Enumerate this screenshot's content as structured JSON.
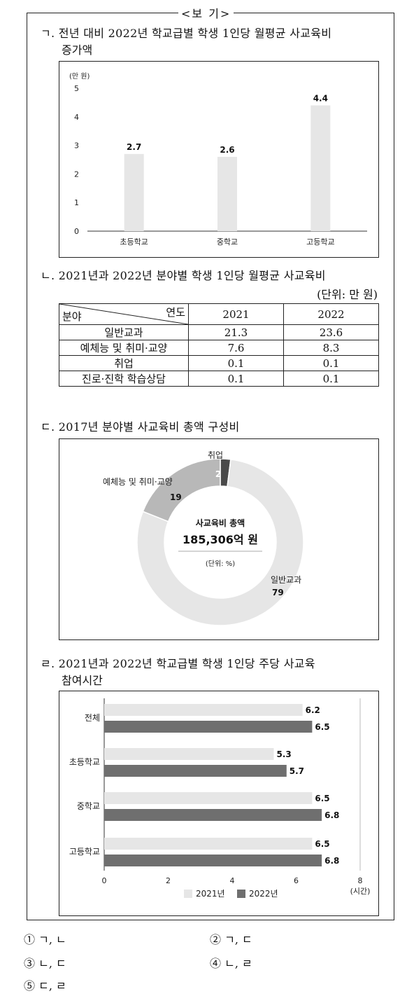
{
  "box_title": "<보 기>",
  "section_a": {
    "marker": "ㄱ.",
    "title_line1": "전년 대비 2022년 학교급별 학생 1인당 월평균 사교육비",
    "title_line2": "증가액"
  },
  "section_b": {
    "marker": "ㄴ.",
    "title": "2021년과 2022년 분야별 학생 1인당 월평균 사교육비",
    "unit": "(단위: 만 원)",
    "corner_col": "연도",
    "corner_row": "분야",
    "years": [
      "2021",
      "2022"
    ],
    "rows": [
      {
        "label": "일반교과",
        "v2021": "21.3",
        "v2022": "23.6"
      },
      {
        "label": "예체능 및 취미·교양",
        "v2021": "7.6",
        "v2022": "8.3"
      },
      {
        "label": "취업",
        "v2021": "0.1",
        "v2022": "0.1"
      },
      {
        "label": "진로·진학 학습상담",
        "v2021": "0.1",
        "v2022": "0.1"
      }
    ]
  },
  "section_c": {
    "marker": "ㄷ.",
    "title": "2017년 분야별 사교육비 총액 구성비"
  },
  "section_d": {
    "marker": "ㄹ.",
    "title_line1": "2021년과 2022년 학교급별 학생 1인당 주당 사교육",
    "title_line2": "참여시간"
  },
  "choices": [
    {
      "num": "①",
      "text": "ㄱ, ㄴ"
    },
    {
      "num": "②",
      "text": "ㄱ, ㄷ"
    },
    {
      "num": "③",
      "text": "ㄴ, ㄷ"
    },
    {
      "num": "④",
      "text": "ㄴ, ㄹ"
    },
    {
      "num": "⑤",
      "text": "ㄷ, ㄹ"
    }
  ],
  "colors": {
    "bar_light": "#e6e6e6",
    "bar_dark": "#6f6f6f",
    "donut_mid": "#b8b8b8",
    "donut_dark": "#4a4a4a"
  },
  "chart_data": [
    {
      "type": "bar",
      "ylabel": "(만 원)",
      "categories": [
        "초등학교",
        "중학교",
        "고등학교"
      ],
      "values": [
        2.7,
        2.6,
        4.4
      ],
      "data_labels": [
        "2.7",
        "2.6",
        "4.4"
      ],
      "yticks": [
        "0",
        "1",
        "2",
        "3",
        "4",
        "5"
      ],
      "ylim": [
        0,
        5
      ],
      "grid": false
    },
    {
      "type": "pie",
      "segments": [
        {
          "label": "일반교과",
          "value": 79,
          "value_label": "79"
        },
        {
          "label": "예체능 및 취미·교양",
          "value": 19,
          "value_label": "19"
        },
        {
          "label": "취업",
          "value": 2,
          "value_label": "2"
        }
      ],
      "center_line1": "사교육비 총액",
      "center_line2": "185,306억 원",
      "center_unit": "(단위: %)"
    },
    {
      "type": "bar",
      "orientation": "horizontal",
      "categories": [
        "전체",
        "초등학교",
        "중학교",
        "고등학교"
      ],
      "series": [
        {
          "name": "2021년",
          "values": [
            6.2,
            5.3,
            6.5,
            6.5
          ],
          "labels": [
            "6.2",
            "5.3",
            "6.5",
            "6.5"
          ]
        },
        {
          "name": "2022년",
          "values": [
            6.5,
            5.7,
            6.8,
            6.8
          ],
          "labels": [
            "6.5",
            "5.7",
            "6.8",
            "6.8"
          ]
        }
      ],
      "xticks": [
        "0",
        "2",
        "4",
        "6",
        "8"
      ],
      "xlabel": "(시간)",
      "xlim": [
        0,
        8
      ],
      "legend": "bottom"
    }
  ]
}
